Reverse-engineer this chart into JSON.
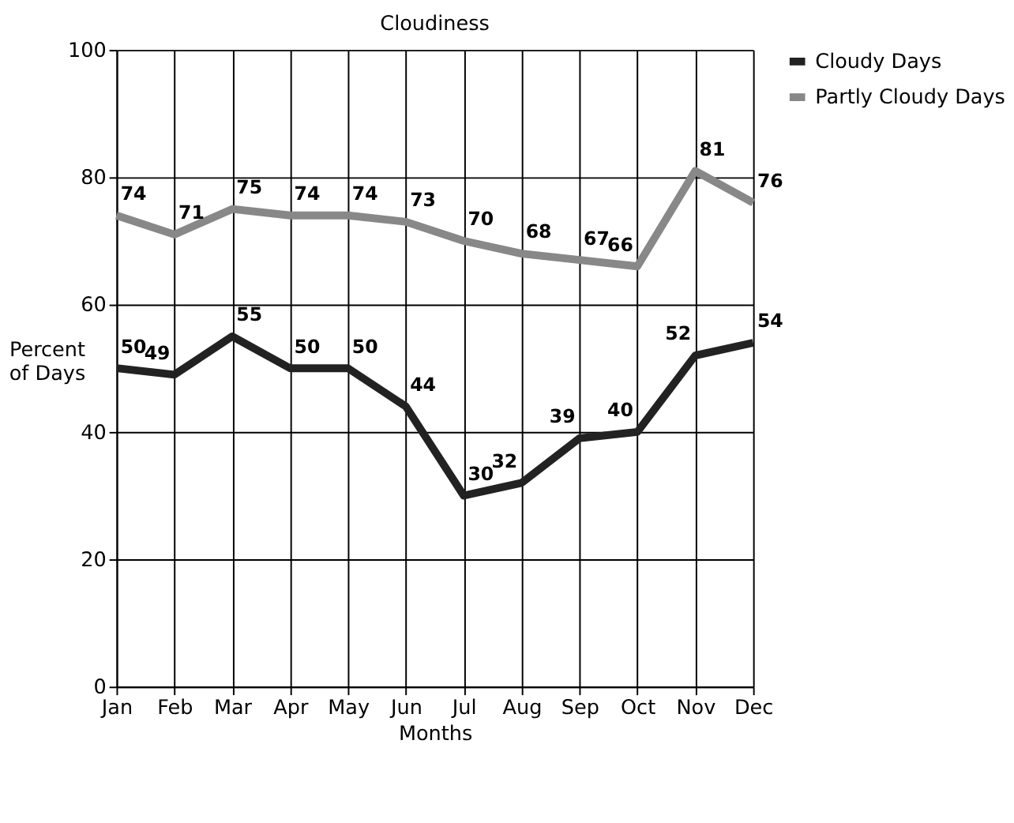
{
  "chart_data": {
    "type": "line",
    "title": "Cloudiness",
    "xlabel": "Months",
    "ylabel": "Percent\nof Days",
    "categories": [
      "Jan",
      "Feb",
      "Mar",
      "Apr",
      "May",
      "Jun",
      "Jul",
      "Aug",
      "Sep",
      "Oct",
      "Nov",
      "Dec"
    ],
    "series": [
      {
        "name": "Cloudy Days",
        "color": "#222222",
        "values": [
          50,
          49,
          55,
          50,
          50,
          44,
          30,
          32,
          39,
          40,
          52,
          54
        ]
      },
      {
        "name": "Partly Cloudy Days",
        "color": "#888888",
        "values": [
          74,
          71,
          75,
          74,
          74,
          73,
          70,
          68,
          67,
          66,
          81,
          76
        ]
      }
    ],
    "ylim": [
      0,
      100
    ],
    "yticks": [
      0,
      20,
      40,
      60,
      80,
      100
    ],
    "grid": true,
    "legend": "right",
    "data_labels": true,
    "marker": "none",
    "line_style": "solid"
  }
}
